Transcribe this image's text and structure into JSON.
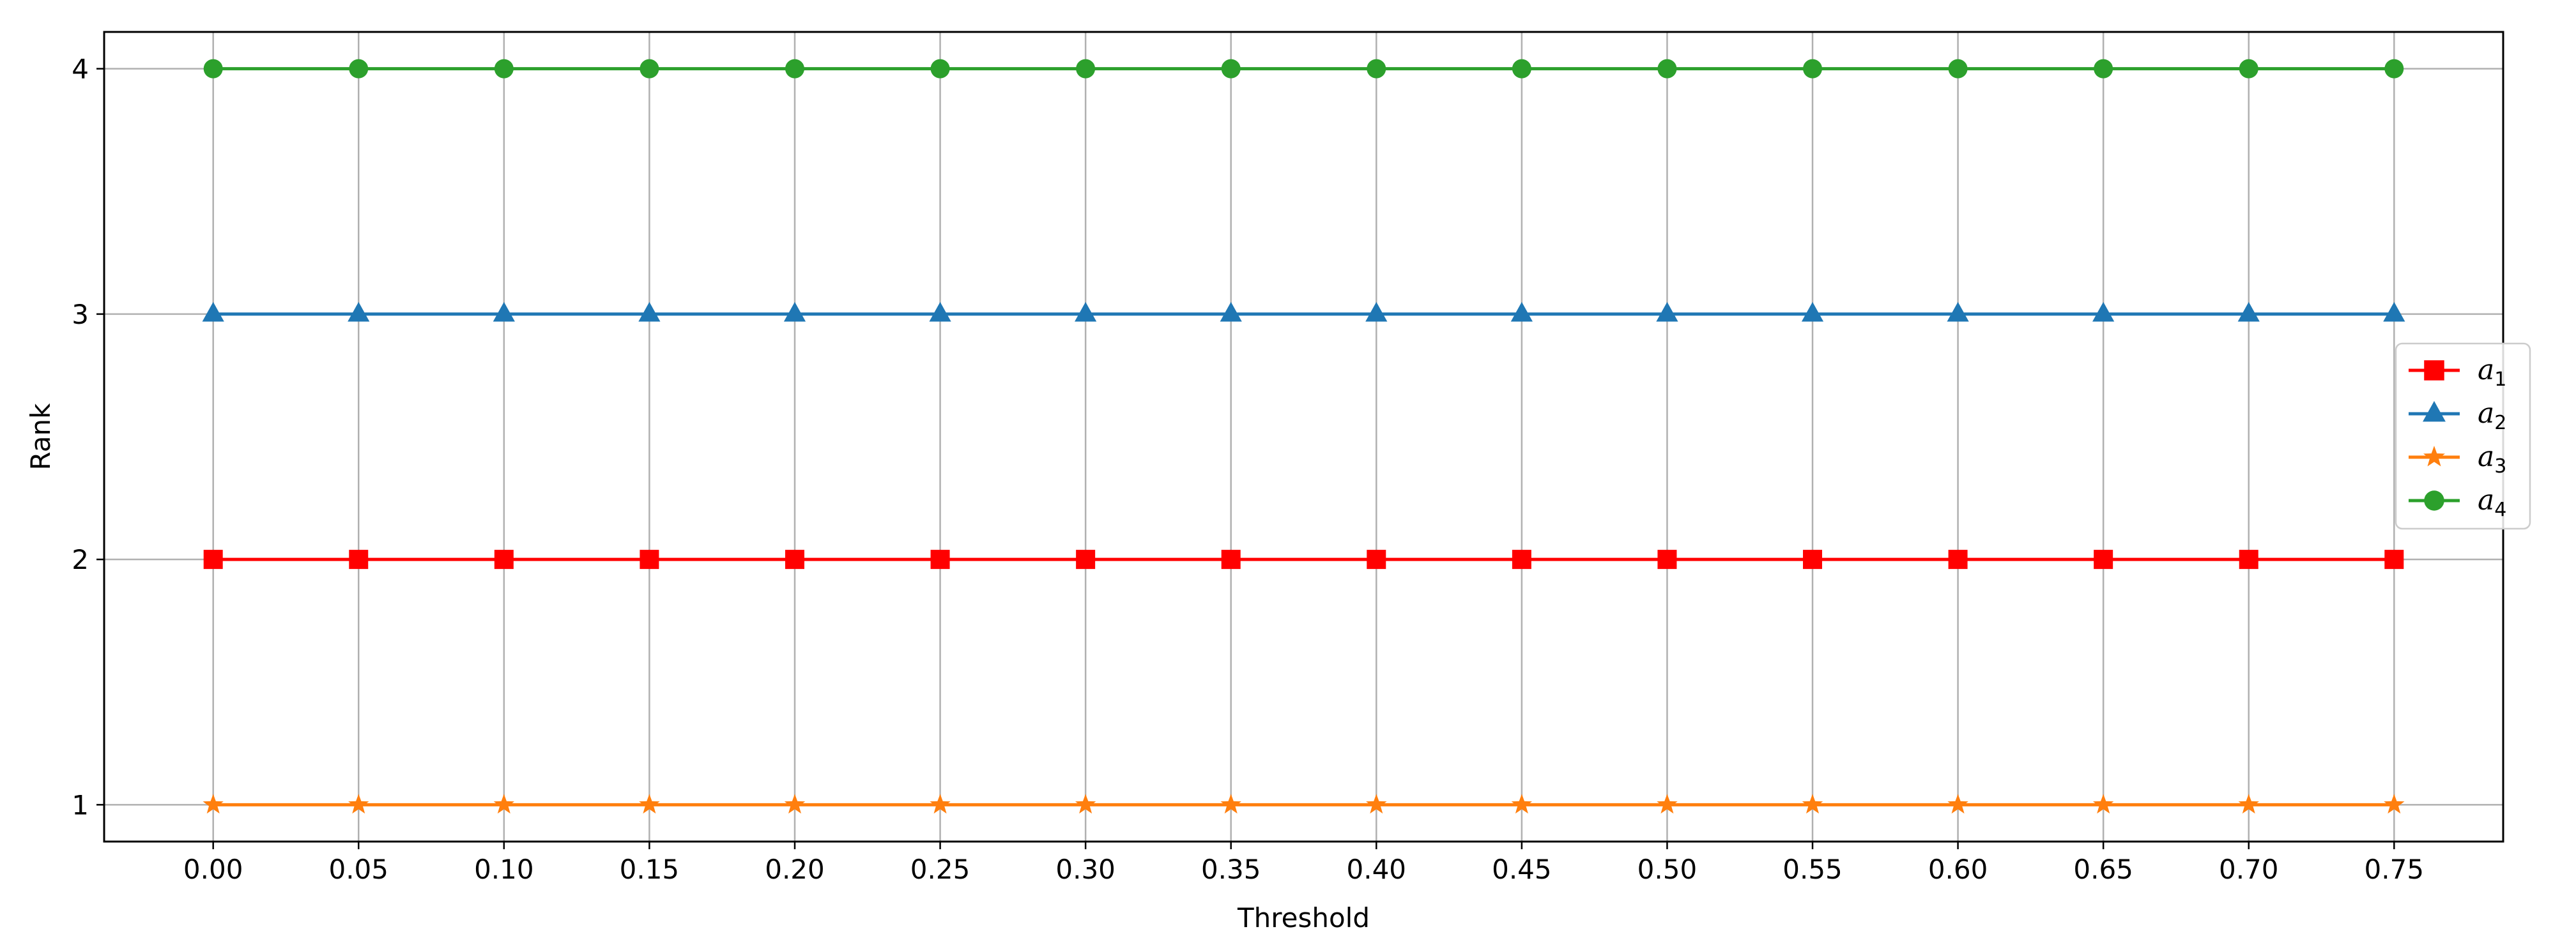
{
  "chart_data": {
    "type": "line",
    "xlabel": "Threshold",
    "ylabel": "Rank",
    "x": [
      0.0,
      0.05,
      0.1,
      0.15,
      0.2,
      0.25,
      0.3,
      0.35,
      0.4,
      0.45,
      0.5,
      0.55,
      0.6,
      0.65,
      0.7,
      0.75
    ],
    "x_tick_labels": [
      "0.00",
      "0.05",
      "0.10",
      "0.15",
      "0.20",
      "0.25",
      "0.30",
      "0.35",
      "0.40",
      "0.45",
      "0.50",
      "0.55",
      "0.60",
      "0.65",
      "0.70",
      "0.75"
    ],
    "y_ticks": [
      1,
      2,
      3,
      4
    ],
    "y_tick_labels": [
      "1",
      "2",
      "3",
      "4"
    ],
    "xlim": [
      -0.0375,
      0.7875
    ],
    "ylim": [
      0.85,
      4.15
    ],
    "grid": true,
    "legend_position": "center-right",
    "series": [
      {
        "name": "a",
        "sub": "1",
        "color": "#ff0000",
        "marker": "square",
        "values": [
          2,
          2,
          2,
          2,
          2,
          2,
          2,
          2,
          2,
          2,
          2,
          2,
          2,
          2,
          2,
          2
        ]
      },
      {
        "name": "a",
        "sub": "2",
        "color": "#1f77b4",
        "marker": "triangle",
        "values": [
          3,
          3,
          3,
          3,
          3,
          3,
          3,
          3,
          3,
          3,
          3,
          3,
          3,
          3,
          3,
          3
        ]
      },
      {
        "name": "a",
        "sub": "3",
        "color": "#ff7f0e",
        "marker": "star",
        "values": [
          1,
          1,
          1,
          1,
          1,
          1,
          1,
          1,
          1,
          1,
          1,
          1,
          1,
          1,
          1,
          1
        ]
      },
      {
        "name": "a",
        "sub": "4",
        "color": "#2ca02c",
        "marker": "circle",
        "values": [
          4,
          4,
          4,
          4,
          4,
          4,
          4,
          4,
          4,
          4,
          4,
          4,
          4,
          4,
          4,
          4
        ]
      }
    ]
  }
}
